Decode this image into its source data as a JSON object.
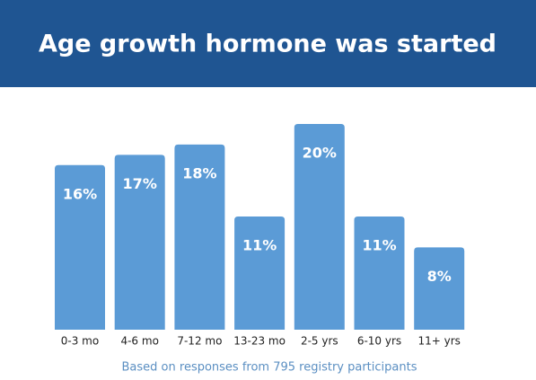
{
  "chart_data": {
    "type": "bar",
    "title": "Age growth hormone was started",
    "categories": [
      "0-3 mo",
      "4-6 mo",
      "7-12 mo",
      "13-23 mo",
      "2-5 yrs",
      "6-10 yrs",
      "11+ yrs"
    ],
    "values": [
      16,
      17,
      18,
      11,
      20,
      11,
      8
    ],
    "value_labels": [
      "16%",
      "17%",
      "18%",
      "11%",
      "20%",
      "11%",
      "8%"
    ],
    "color": "#5b9bd6",
    "caption": "Based on responses from 795 registry participants"
  }
}
